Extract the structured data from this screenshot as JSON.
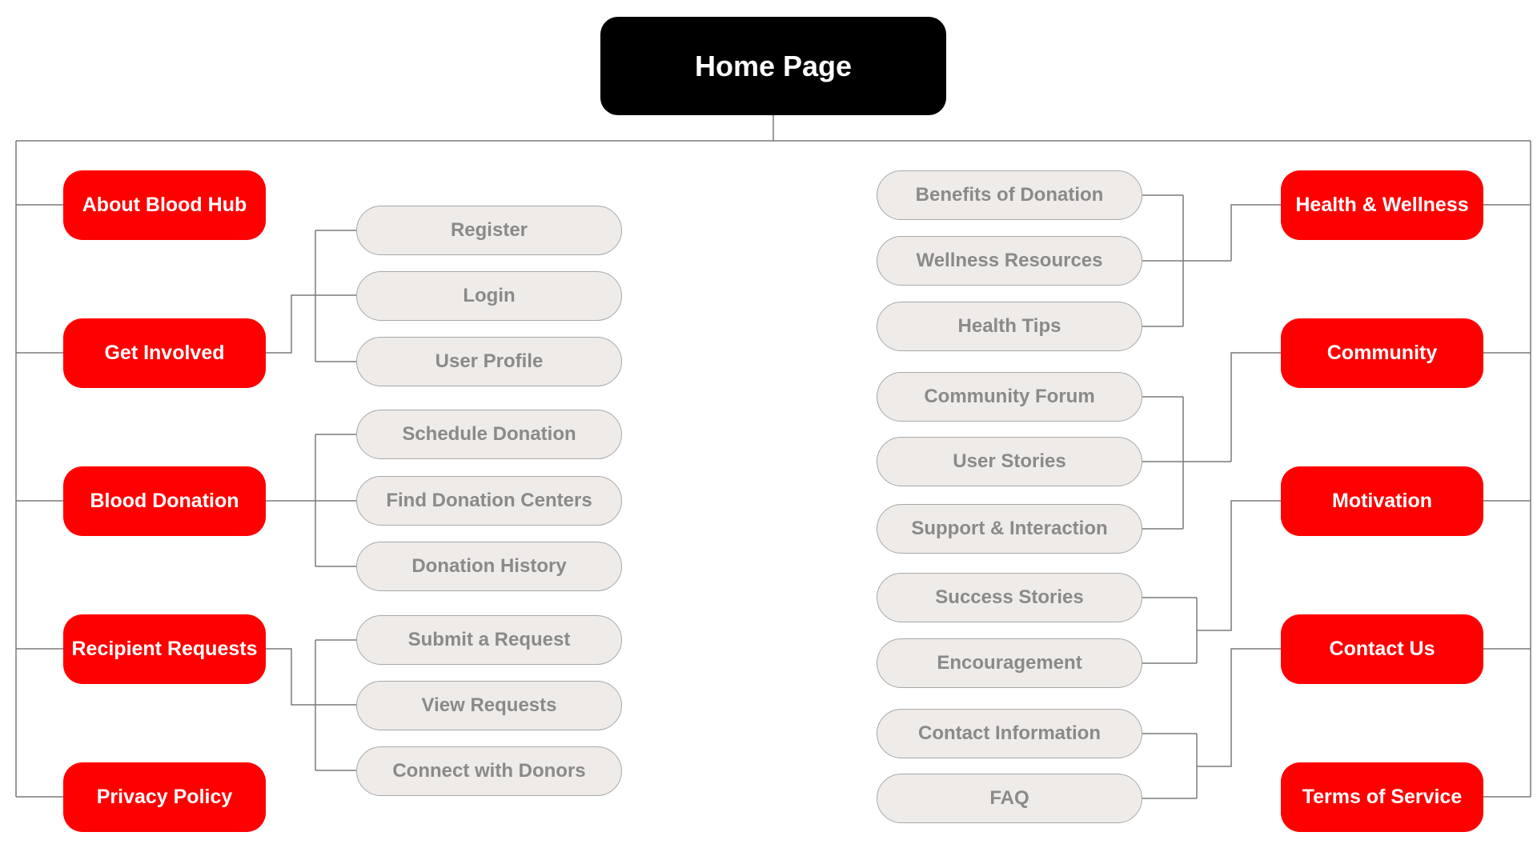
{
  "root": {
    "label": "Home Page"
  },
  "colors": {
    "section_fill": "#ff0000",
    "root_fill": "#000000",
    "leaf_fill": "#eeebe9",
    "leaf_text": "#8a8a8a",
    "connector": "#7a7a7a"
  },
  "left_sections": [
    {
      "label": "About Blood Hub",
      "children": []
    },
    {
      "label": "Get Involved",
      "children": [
        "Register",
        "Login",
        "User Profile"
      ]
    },
    {
      "label": "Blood Donation",
      "children": [
        "Schedule Donation",
        "Find Donation Centers",
        "Donation History"
      ]
    },
    {
      "label": "Recipient Requests",
      "children": [
        "Submit a Request",
        "View Requests",
        "Connect with Donors"
      ]
    },
    {
      "label": "Privacy Policy",
      "children": []
    }
  ],
  "right_sections": [
    {
      "label": "Health & Wellness",
      "children": [
        "Benefits of Donation",
        "Wellness Resources",
        "Health Tips"
      ]
    },
    {
      "label": "Community",
      "children": [
        "Community Forum",
        "User Stories",
        "Support & Interaction"
      ]
    },
    {
      "label": "Motivation",
      "children": [
        "Success Stories",
        "Encouragement"
      ]
    },
    {
      "label": "Contact Us",
      "children": [
        "Contact Information",
        "FAQ"
      ]
    },
    {
      "label": "Terms of Service",
      "children": []
    }
  ]
}
